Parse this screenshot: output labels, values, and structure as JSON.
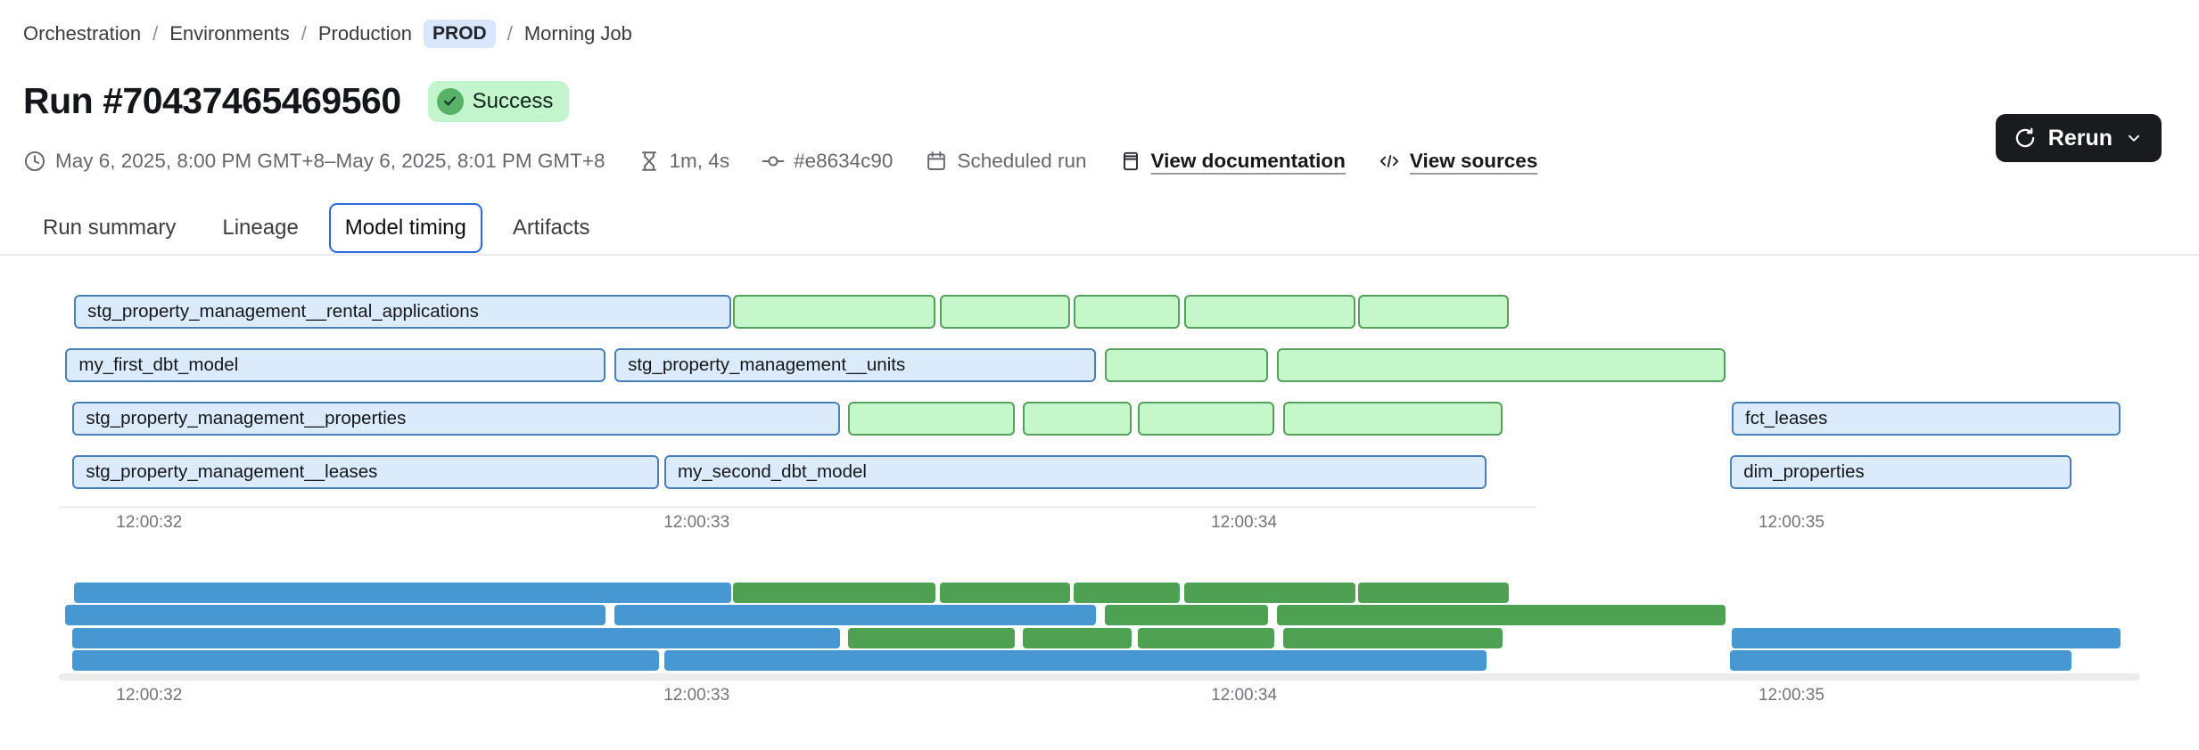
{
  "breadcrumb": {
    "separator": "/",
    "items": [
      {
        "label": "Orchestration"
      },
      {
        "label": "Environments"
      },
      {
        "label": "Production"
      },
      {
        "label": "Morning Job"
      }
    ],
    "badge": "PROD"
  },
  "header": {
    "title": "Run #70437465469560",
    "status": "Success"
  },
  "meta": {
    "time_range": "May 6, 2025, 8:00 PM GMT+8–May 6, 2025, 8:01 PM GMT+8",
    "duration": "1m, 4s",
    "commit": "#e8634c90",
    "trigger": "Scheduled run",
    "doc_link": "View documentation",
    "sources_link": "View sources"
  },
  "actions": {
    "rerun_label": "Rerun"
  },
  "tabs": [
    {
      "label": "Run summary",
      "active": false
    },
    {
      "label": "Lineage",
      "active": false
    },
    {
      "label": "Model timing",
      "active": true
    },
    {
      "label": "Artifacts",
      "active": false
    }
  ],
  "colors": {
    "accent": "#2d68dd",
    "prod_badge_bg": "#d9e6fc",
    "success_badge_bg": "#c2f5cb",
    "success_circle": "#57b267",
    "rerun_button_bg": "#1a1b1e",
    "link_color": "#17181a",
    "meta_text": "#68686c",
    "axis_text": "#73737a"
  },
  "chart_data": {
    "type": "gantt",
    "title": "Model timing",
    "axis": {
      "domain_start": 31.835,
      "domain_end": 35.637,
      "ticks": [
        {
          "label": "12:00:32",
          "t": 32
        },
        {
          "label": "12:00:33",
          "t": 33
        },
        {
          "label": "12:00:34",
          "t": 34
        },
        {
          "label": "12:00:35",
          "t": 35
        }
      ]
    },
    "rows": [
      {
        "bars": [
          {
            "label": "stg_property_management__rental_applications",
            "kind": "model",
            "start": 31.863,
            "end": 33.063
          },
          {
            "label": "",
            "kind": "test",
            "start": 33.067,
            "end": 33.436
          },
          {
            "label": "",
            "kind": "test",
            "start": 33.444,
            "end": 33.682
          },
          {
            "label": "",
            "kind": "test",
            "start": 33.688,
            "end": 33.882
          },
          {
            "label": "",
            "kind": "test",
            "start": 33.89,
            "end": 34.203
          },
          {
            "label": "",
            "kind": "test",
            "start": 34.209,
            "end": 34.483
          }
        ]
      },
      {
        "bars": [
          {
            "label": "my_first_dbt_model",
            "kind": "model",
            "start": 31.847,
            "end": 32.834
          },
          {
            "label": "stg_property_management__units",
            "kind": "model",
            "start": 32.85,
            "end": 33.73
          },
          {
            "label": "",
            "kind": "test",
            "start": 33.746,
            "end": 34.044
          },
          {
            "label": "",
            "kind": "test",
            "start": 34.06,
            "end": 34.879
          }
        ]
      },
      {
        "bars": [
          {
            "label": "stg_property_management__properties",
            "kind": "model",
            "start": 31.86,
            "end": 33.262
          },
          {
            "label": "",
            "kind": "test",
            "start": 33.277,
            "end": 33.581
          },
          {
            "label": "",
            "kind": "test",
            "start": 33.596,
            "end": 33.795
          },
          {
            "label": "",
            "kind": "test",
            "start": 33.806,
            "end": 34.055
          },
          {
            "label": "",
            "kind": "test",
            "start": 34.072,
            "end": 34.472
          },
          {
            "label": "fct_leases",
            "kind": "model",
            "start": 34.891,
            "end": 35.601
          }
        ]
      },
      {
        "bars": [
          {
            "label": "stg_property_management__leases",
            "kind": "model",
            "start": 31.86,
            "end": 32.931
          },
          {
            "label": "my_second_dbt_model",
            "kind": "model",
            "start": 32.941,
            "end": 34.443
          },
          {
            "label": "dim_properties",
            "kind": "model",
            "start": 34.888,
            "end": 35.511
          }
        ]
      }
    ],
    "colors": {
      "model_fill": "#dcebfb",
      "model_border": "#4a80b7",
      "test_fill": "#c6f7cb",
      "test_border": "#56a05c",
      "minimap_model": "#4697d2",
      "minimap_test": "#4ea153"
    }
  }
}
